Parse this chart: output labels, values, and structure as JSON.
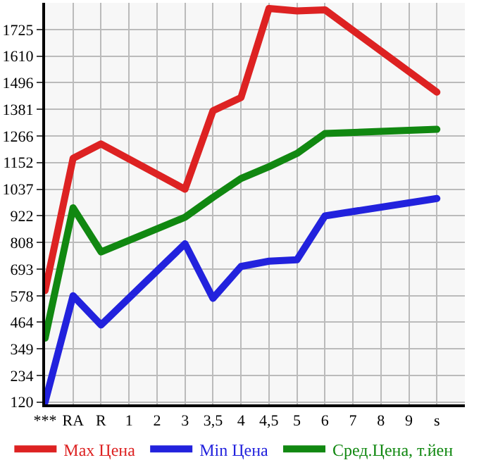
{
  "chart_data": {
    "type": "line",
    "categories": [
      "***",
      "RA",
      "R",
      "1",
      "2",
      "3",
      "3,5",
      "4",
      "4,5",
      "5",
      "6",
      "7",
      "8",
      "9",
      "s"
    ],
    "series": [
      {
        "name": "Max Цена",
        "color": "#dd2222",
        "values": [
          600,
          1170,
          1232,
          null,
          null,
          1037,
          1375,
          1432,
          1816,
          1805,
          1810,
          null,
          null,
          null,
          1455
        ]
      },
      {
        "name": "Min Цена",
        "color": "#2222dd",
        "values": [
          120,
          578,
          452,
          null,
          null,
          802,
          567,
          704,
          727,
          733,
          922,
          null,
          null,
          null,
          997
        ]
      },
      {
        "name": "Сред.Цена, т.йен",
        "color": "#118811",
        "values": [
          395,
          957,
          767,
          null,
          null,
          916,
          1002,
          1083,
          1134,
          1191,
          1277,
          null,
          null,
          null,
          1295
        ]
      }
    ],
    "ylim": [
      110,
      1840
    ],
    "yticks": [
      120,
      234,
      349,
      464,
      578,
      693,
      808,
      922,
      1037,
      1152,
      1266,
      1381,
      1496,
      1610,
      1725
    ],
    "grid": true,
    "legend": "bottom",
    "line_style": "solid",
    "marker": "none"
  }
}
